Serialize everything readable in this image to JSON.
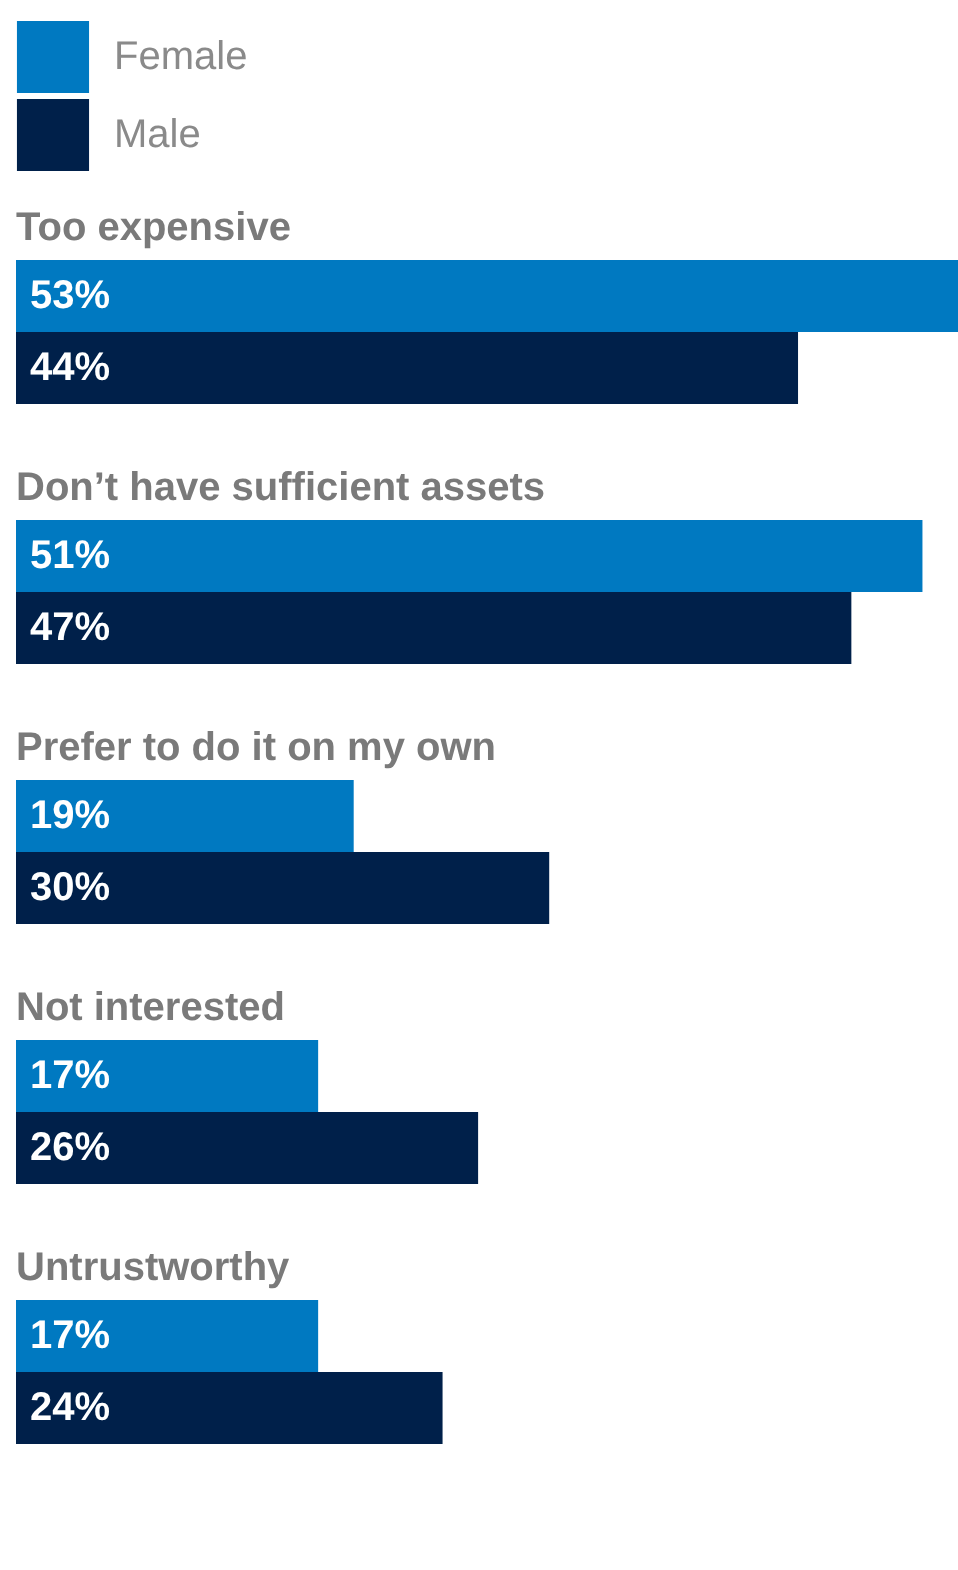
{
  "chart_data": {
    "type": "bar",
    "orientation": "horizontal",
    "legend": "top left",
    "categories": [
      "Too expensive",
      "Don’t have sufficient assets",
      "Prefer to do it on my own",
      "Not interested",
      "Untrustworthy"
    ],
    "series": [
      {
        "name": "Female",
        "color": "#0079c1",
        "values": [
          53,
          51,
          19,
          17,
          17
        ],
        "value_labels": [
          "53%",
          "51%",
          "19%",
          "17%",
          "17%"
        ]
      },
      {
        "name": "Male",
        "color": "#00204a",
        "values": [
          44,
          47,
          30,
          26,
          24
        ],
        "value_labels": [
          "44%",
          "47%",
          "30%",
          "26%",
          "24%"
        ]
      }
    ]
  }
}
